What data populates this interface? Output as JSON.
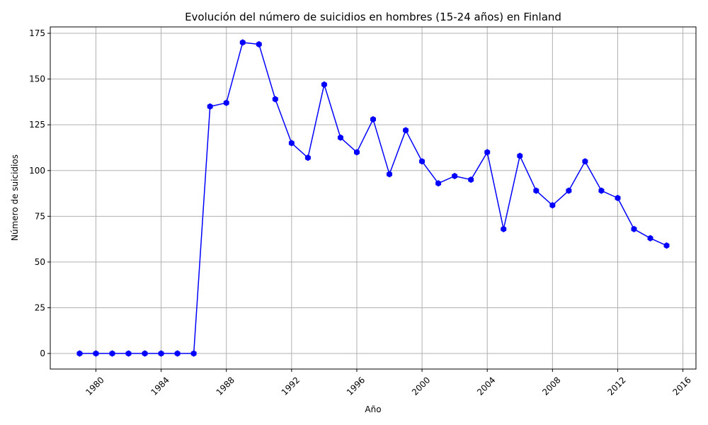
{
  "chart_data": {
    "type": "line",
    "title": "Evolución del número de suicidios en hombres (15-24 años) en Finland",
    "xlabel": "Año",
    "ylabel": "Número de suicidios",
    "xlim": [
      1977.2,
      2016.8
    ],
    "ylim": [
      -8.5,
      178.5
    ],
    "x_ticks": [
      1980,
      1984,
      1988,
      1992,
      1996,
      2000,
      2004,
      2008,
      2012,
      2016
    ],
    "y_ticks": [
      0,
      25,
      50,
      75,
      100,
      125,
      150,
      175
    ],
    "grid": true,
    "series": [
      {
        "color": "#0000ff",
        "marker": "hexagon",
        "x": [
          1979,
          1980,
          1981,
          1982,
          1983,
          1984,
          1985,
          1986,
          1987,
          1988,
          1989,
          1990,
          1991,
          1992,
          1993,
          1994,
          1995,
          1996,
          1997,
          1998,
          1999,
          2000,
          2001,
          2002,
          2003,
          2004,
          2005,
          2006,
          2007,
          2008,
          2009,
          2010,
          2011,
          2012,
          2013,
          2014,
          2015
        ],
        "values": [
          0,
          0,
          0,
          0,
          0,
          0,
          0,
          0,
          135,
          137,
          170,
          169,
          139,
          115,
          107,
          147,
          118,
          110,
          128,
          98,
          122,
          105,
          93,
          97,
          95,
          110,
          68,
          108,
          89,
          81,
          89,
          105,
          89,
          85,
          68,
          63,
          59
        ]
      }
    ]
  }
}
